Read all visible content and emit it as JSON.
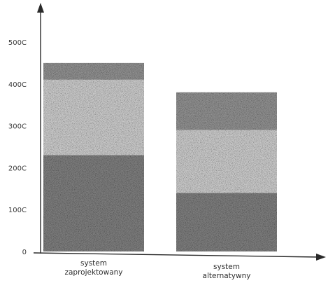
{
  "chart_data": {
    "type": "bar",
    "stacked": true,
    "categories": [
      "system\nzaprojektowany",
      "system\nalternatywny"
    ],
    "series": [
      {
        "values": [
          2300,
          1400
        ],
        "color": "#7d7d7d"
      },
      {
        "values": [
          1800,
          1500
        ],
        "color": "#c9c9c9"
      },
      {
        "values": [
          400,
          900
        ],
        "color": "#8f8f8f"
      }
    ],
    "yticks": [
      "0",
      "100C",
      "200C",
      "300C",
      "400C",
      "500C"
    ],
    "ytick_values": [
      0,
      1000,
      2000,
      3000,
      4000,
      5000
    ],
    "ylim": [
      0,
      5000
    ],
    "grid": false,
    "legend": "none",
    "title": "",
    "xlabel": "",
    "ylabel": ""
  }
}
